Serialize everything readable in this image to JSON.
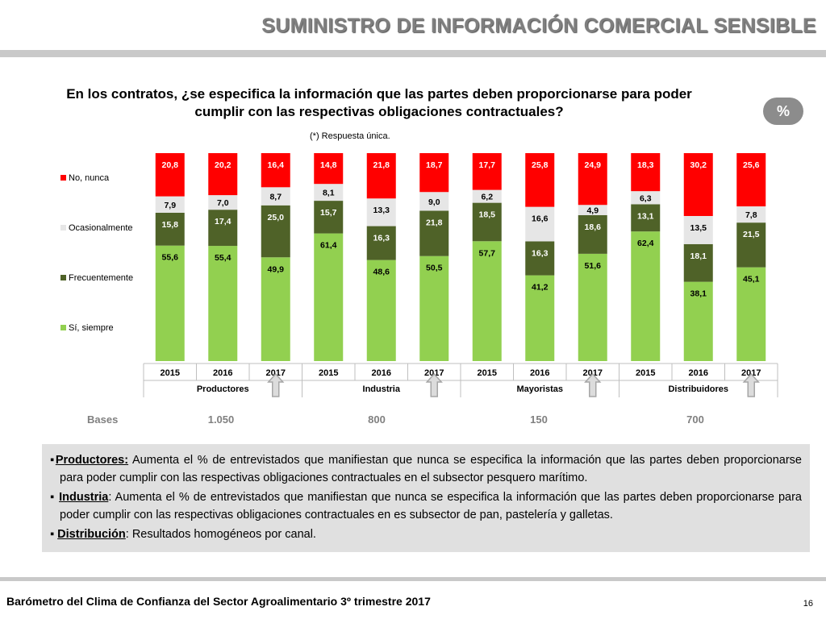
{
  "header": {
    "title": "SUMINISTRO DE INFORMACIÓN COMERCIAL SENSIBLE"
  },
  "question": "En los contratos, ¿se especifica la información que las partes deben proporcionarse para poder cumplir con las respectivas obligaciones contractuales?",
  "percent_badge": "%",
  "footnote": "(*) Respuesta única.",
  "chart_data": {
    "type": "bar",
    "stacked": true,
    "ylim": [
      0,
      100
    ],
    "categories": [
      "2015",
      "2016",
      "2017",
      "2015",
      "2016",
      "2017",
      "2015",
      "2016",
      "2017",
      "2015",
      "2016",
      "2017"
    ],
    "groups": [
      {
        "name": "Productores",
        "base": "1.050"
      },
      {
        "name": "Industria",
        "base": "800"
      },
      {
        "name": "Mayoristas",
        "base": "150"
      },
      {
        "name": "Distribuidores",
        "base": "700"
      }
    ],
    "series": [
      {
        "name": "Sí, siempre",
        "color": "#92d050",
        "values": [
          "55,6",
          "55,4",
          "49,9",
          "61,4",
          "48,6",
          "50,5",
          "57,7",
          "41,2",
          "51,6",
          "62,4",
          "38,1",
          "45,1"
        ]
      },
      {
        "name": "Frecuentemente",
        "color": "#4f6228",
        "values": [
          "15,8",
          "17,4",
          "25,0",
          "15,7",
          "16,3",
          "21,8",
          "18,5",
          "16,3",
          "18,6",
          "13,1",
          "18,1",
          "21,5"
        ]
      },
      {
        "name": "Ocasionalmente",
        "color": "#e6e6e6",
        "values": [
          "7,9",
          "7,0",
          "8,7",
          "8,1",
          "13,3",
          "9,0",
          "6,2",
          "16,6",
          "4,9",
          "6,3",
          "13,5",
          "7,8"
        ]
      },
      {
        "name": "No, nunca",
        "color": "#ff0000",
        "values": [
          "20,8",
          "20,2",
          "16,4",
          "14,8",
          "21,8",
          "18,7",
          "17,7",
          "25,8",
          "24,9",
          "18,3",
          "30,2",
          "25,6"
        ]
      }
    ],
    "legend_order": [
      "No, nunca",
      "Ocasionalmente",
      "Frecuentemente",
      "Sí, siempre"
    ],
    "legend_position": "left"
  },
  "bases": {
    "label": "Bases"
  },
  "notes": [
    {
      "lead": "Productores:",
      "text": " Aumenta el % de entrevistados que manifiestan que nunca se especifica la información que las partes deben proporcionarse para poder cumplir con las respectivas obligaciones contractuales en el subsector pesquero marítimo."
    },
    {
      "lead": "Industria",
      "text": ": Aumenta el % de entrevistados que manifiestan que nunca se especifica la información que las partes deben proporcionarse para poder cumplir con las respectivas obligaciones contractuales en es subsector de pan, pastelería y galletas."
    },
    {
      "lead": "Distribución",
      "text": ": Resultados homogéneos por canal."
    }
  ],
  "bullet": "▪",
  "footer": {
    "text": "Barómetro del Clima de Confianza del Sector Agroalimentario 3º trimestre 2017",
    "page": "16"
  },
  "colors": {
    "title": "#7f7f7f",
    "arrow": "#a6a6a6"
  }
}
